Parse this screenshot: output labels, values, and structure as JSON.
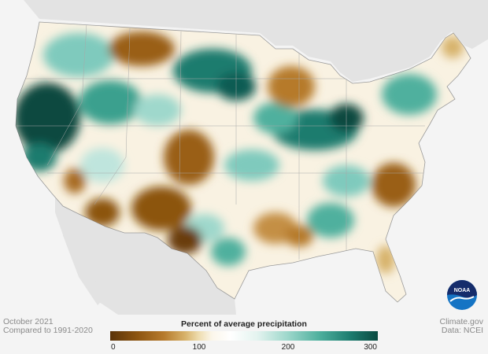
{
  "period": "October 2021",
  "baseline": "Compared to 1991-2020",
  "source": "Climate.gov",
  "data_source": "Data: NCEI",
  "logo_text": "NOAA",
  "legend": {
    "title": "Percent of average precipitation",
    "ticks": [
      "0",
      "100",
      "200",
      "300"
    ],
    "min": 0,
    "max": 300
  },
  "colors": {
    "very_dry": "#5b3409",
    "dry": "#b67a2c",
    "normal": "#ffffff",
    "wet": "#4fb09e",
    "very_wet": "#0a4a40",
    "ocean": "#f4f4f4",
    "neighbor_land": "#e3e3e3",
    "noaa_blue": "#1574c4",
    "noaa_navy": "#152c6b"
  }
}
